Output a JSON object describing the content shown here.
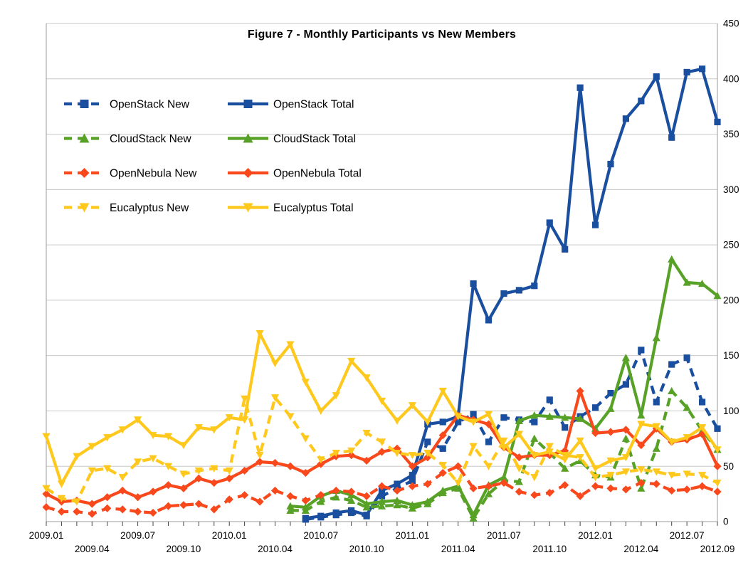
{
  "title": "Figure 7 - Monthly Participants vs New Members",
  "colors": {
    "openstack": "#1a4e9e",
    "cloudstack": "#57a226",
    "opennebula": "#f8481c",
    "eucalyptus": "#ffc81c",
    "gridline": "#c8c8c8",
    "axis_border": "#9b9b9b",
    "tick": "#444444"
  },
  "chart_data": {
    "type": "line",
    "title": "Figure 7 - Monthly Participants vs New Members",
    "xlabel": "",
    "ylabel": "",
    "ylim": [
      0,
      450
    ],
    "y_ticks": [
      0,
      50,
      100,
      150,
      200,
      250,
      300,
      350,
      400,
      450
    ],
    "y_axis_side": "right",
    "grid": "horizontal",
    "legend_position": "top-left-inside",
    "x": [
      "2009.01",
      "2009.02",
      "2009.03",
      "2009.04",
      "2009.05",
      "2009.06",
      "2009.07",
      "2009.08",
      "2009.09",
      "2009.10",
      "2009.11",
      "2009.12",
      "2010.01",
      "2010.02",
      "2010.03",
      "2010.04",
      "2010.05",
      "2010.06",
      "2010.07",
      "2010.08",
      "2010.09",
      "2010.10",
      "2010.11",
      "2010.12",
      "2011.01",
      "2011.02",
      "2011.03",
      "2011.04",
      "2011.05",
      "2011.06",
      "2011.07",
      "2011.08",
      "2011.09",
      "2011.10",
      "2011.11",
      "2011.12",
      "2012.01",
      "2012.02",
      "2012.03",
      "2012.04",
      "2012.05",
      "2012.06",
      "2012.07",
      "2012.08",
      "2012.09"
    ],
    "x_tick_row1_indices": [
      0,
      6,
      12,
      18,
      24,
      30,
      36,
      42
    ],
    "x_tick_row2_indices": [
      3,
      9,
      15,
      21,
      27,
      33,
      39,
      44
    ],
    "series": [
      {
        "name": "OpenStack New",
        "color": "#1a4e9e",
        "style": "dashed",
        "marker": "square",
        "values": [
          null,
          null,
          null,
          null,
          null,
          null,
          null,
          null,
          null,
          null,
          null,
          null,
          null,
          null,
          null,
          null,
          null,
          2,
          4,
          6,
          8,
          5,
          23,
          30,
          37,
          72,
          66,
          90,
          97,
          72,
          94,
          92,
          90,
          110,
          85,
          95,
          103,
          116,
          124,
          155,
          108,
          142,
          148,
          108,
          84
        ]
      },
      {
        "name": "OpenStack Total",
        "color": "#1a4e9e",
        "style": "solid",
        "marker": "square",
        "values": [
          null,
          null,
          null,
          null,
          null,
          null,
          null,
          null,
          null,
          null,
          null,
          null,
          null,
          null,
          null,
          null,
          null,
          3,
          5,
          8,
          10,
          6,
          28,
          34,
          42,
          88,
          90,
          95,
          215,
          182,
          206,
          209,
          213,
          270,
          246,
          392,
          268,
          323,
          364,
          380,
          402,
          347,
          406,
          409,
          361
        ]
      },
      {
        "name": "CloudStack New",
        "color": "#57a226",
        "style": "dashed",
        "marker": "triangle-up",
        "values": [
          null,
          null,
          null,
          null,
          null,
          null,
          null,
          null,
          null,
          null,
          null,
          null,
          null,
          null,
          null,
          null,
          10,
          10,
          18,
          22,
          19,
          13,
          14,
          15,
          12,
          16,
          26,
          30,
          3,
          25,
          37,
          36,
          75,
          62,
          48,
          55,
          42,
          40,
          75,
          30,
          66,
          118,
          103,
          82,
          65
        ]
      },
      {
        "name": "CloudStack Total",
        "color": "#57a226",
        "style": "solid",
        "marker": "triangle-up",
        "values": [
          null,
          null,
          null,
          null,
          null,
          null,
          null,
          null,
          null,
          null,
          null,
          null,
          null,
          null,
          null,
          null,
          14,
          13,
          23,
          28,
          24,
          16,
          18,
          19,
          15,
          18,
          28,
          32,
          6,
          33,
          40,
          91,
          96,
          95,
          94,
          93,
          84,
          102,
          148,
          96,
          166,
          237,
          216,
          215,
          204
        ]
      },
      {
        "name": "OpenNebula New",
        "color": "#f8481c",
        "style": "dashed",
        "marker": "diamond",
        "values": [
          13,
          9,
          9,
          7,
          12,
          11,
          9,
          8,
          14,
          15,
          16,
          11,
          20,
          24,
          18,
          28,
          23,
          19,
          24,
          28,
          27,
          23,
          32,
          28,
          32,
          34,
          44,
          50,
          30,
          32,
          35,
          27,
          24,
          26,
          33,
          23,
          32,
          30,
          29,
          35,
          34,
          28,
          29,
          32,
          27
        ]
      },
      {
        "name": "OpenNebula Total",
        "color": "#f8481c",
        "style": "solid",
        "marker": "diamond",
        "values": [
          25,
          18,
          19,
          16,
          22,
          28,
          22,
          27,
          33,
          30,
          39,
          35,
          39,
          46,
          54,
          53,
          50,
          44,
          52,
          59,
          60,
          55,
          63,
          66,
          50,
          58,
          78,
          96,
          92,
          88,
          67,
          58,
          60,
          60,
          64,
          118,
          80,
          81,
          83,
          69,
          84,
          72,
          74,
          79,
          50
        ]
      },
      {
        "name": "Eucalyptus New",
        "color": "#ffc81c",
        "style": "dashed",
        "marker": "triangle-down",
        "values": [
          30,
          21,
          18,
          46,
          48,
          40,
          54,
          57,
          50,
          43,
          46,
          48,
          46,
          111,
          60,
          112,
          95,
          75,
          56,
          62,
          64,
          80,
          72,
          62,
          60,
          62,
          51,
          35,
          68,
          50,
          73,
          48,
          40,
          68,
          60,
          58,
          40,
          42,
          45,
          47,
          45,
          42,
          43,
          42,
          35
        ]
      },
      {
        "name": "Eucalyptus Total",
        "color": "#ffc81c",
        "style": "solid",
        "marker": "triangle-down",
        "values": [
          77,
          34,
          59,
          68,
          76,
          83,
          92,
          78,
          77,
          69,
          85,
          83,
          94,
          92,
          170,
          143,
          160,
          126,
          100,
          114,
          145,
          130,
          109,
          91,
          105,
          90,
          118,
          95,
          90,
          97,
          67,
          79,
          60,
          63,
          56,
          73,
          48,
          55,
          58,
          88,
          86,
          72,
          76,
          85,
          65
        ]
      }
    ],
    "legend_rows": [
      [
        "OpenStack New",
        "OpenStack Total"
      ],
      [
        "CloudStack New",
        "CloudStack Total"
      ],
      [
        "OpenNebula New",
        "OpenNebula Total"
      ],
      [
        "Eucalyptus New",
        "Eucalyptus Total"
      ]
    ]
  }
}
